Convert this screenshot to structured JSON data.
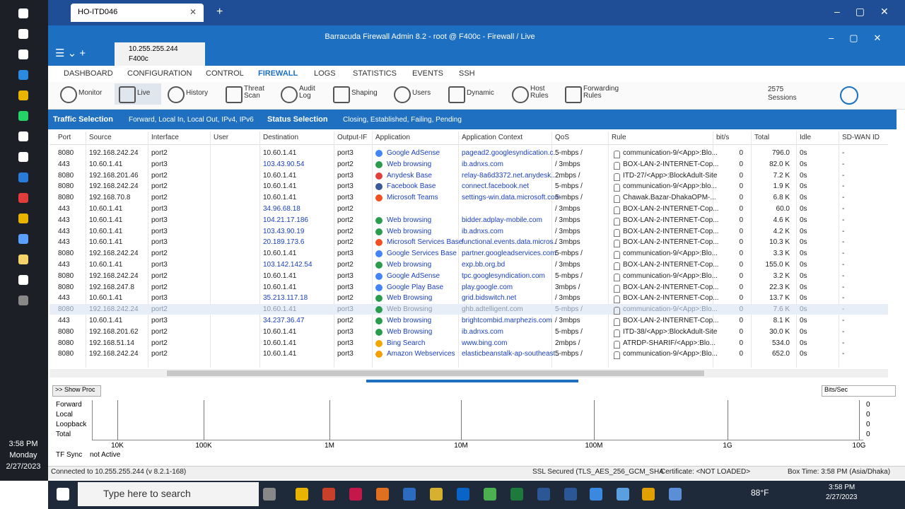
{
  "browser": {
    "tab": "HO-ITD046"
  },
  "window": {
    "title": "Barracuda Firewall Admin 8.2 - root @ F400c - Firewall / Live",
    "session_ip": "10.255.255.244",
    "session_box": "F400c"
  },
  "nav": [
    "DASHBOARD",
    "CONFIGURATION",
    "CONTROL",
    "FIREWALL",
    "LOGS",
    "STATISTICS",
    "EVENTS",
    "SSH"
  ],
  "toolbar": [
    "Monitor",
    "Live",
    "History",
    "Threat Scan",
    "Audit Log",
    "Shaping",
    "Users",
    "Dynamic",
    "Host Rules",
    "Forwarding Rules"
  ],
  "sessions": {
    "count": "2575",
    "label": "Sessions"
  },
  "filters": {
    "traffic_label": "Traffic Selection",
    "traffic_value": "Forward, Local In, Local Out, IPv4, IPv6",
    "status_label": "Status Selection",
    "status_value": "Closing, Established, Failing, Pending"
  },
  "table": {
    "columns": [
      "Port",
      "Source",
      "Interface",
      "User",
      "Destination",
      "Output-IF",
      "Application",
      "Application Context",
      "QoS",
      "Rule",
      "bit/s",
      "Total",
      "Idle",
      "SD-WAN ID"
    ],
    "rows": [
      {
        "port": "8080",
        "source": "192.168.242.24",
        "interface": "port2",
        "destination": "10.60.1.41",
        "output_if": "port3",
        "application": "Google AdSense",
        "context": "pagead2.googlesyndication.c..",
        "qos": "5-mbps /",
        "rule": "communication-9/<App>:Blo...",
        "bits": "0",
        "total": "796.0",
        "idle": "0s",
        "sdwan": "-"
      },
      {
        "port": "443",
        "source": "10.60.1.41",
        "interface": "port3",
        "destination": "103.43.90.54",
        "output_if": "port2",
        "application": "Web browsing",
        "context": "ib.adnxs.com",
        "qos": "/ 3mbps",
        "rule": "BOX-LAN-2-INTERNET-Cop...",
        "bits": "0",
        "total": "82.0 K",
        "idle": "0s",
        "sdwan": "-"
      },
      {
        "port": "8080",
        "source": "192.168.201.46",
        "interface": "port2",
        "destination": "10.60.1.41",
        "output_if": "port3",
        "application": "Anydesk Base",
        "context": "relay-8a6d3372.net.anydesk...",
        "qos": "2mbps /",
        "rule": "ITD-27/<App>:BlockAdult-Site",
        "bits": "0",
        "total": "7.2 K",
        "idle": "0s",
        "sdwan": "-"
      },
      {
        "port": "8080",
        "source": "192.168.242.24",
        "interface": "port2",
        "destination": "10.60.1.41",
        "output_if": "port3",
        "application": "Facebook Base",
        "context": "connect.facebook.net",
        "qos": "5-mbps /",
        "rule": "communication-9/<App>:blo...",
        "bits": "0",
        "total": "1.9 K",
        "idle": "0s",
        "sdwan": "-"
      },
      {
        "port": "8080",
        "source": "192.168.70.8",
        "interface": "port2",
        "destination": "10.60.1.41",
        "output_if": "port3",
        "application": "Microsoft Teams",
        "context": "settings-win.data.microsoft.com",
        "qos": "5-mbps /",
        "rule": "Chawak.Bazar-DhakaOPM-...",
        "bits": "0",
        "total": "6.8 K",
        "idle": "0s",
        "sdwan": "-"
      },
      {
        "port": "443",
        "source": "10.60.1.41",
        "interface": "port3",
        "destination": "34.96.68.18",
        "output_if": "port2",
        "qos": "/ 3mbps",
        "rule": "BOX-LAN-2-INTERNET-Cop...",
        "bits": "0",
        "total": "60.0",
        "idle": "0s",
        "sdwan": "-"
      },
      {
        "port": "443",
        "source": "10.60.1.41",
        "interface": "port3",
        "destination": "104.21.17.186",
        "output_if": "port2",
        "application": "Web browsing",
        "context": "bidder.adplay-mobile.com",
        "qos": "/ 3mbps",
        "rule": "BOX-LAN-2-INTERNET-Cop...",
        "bits": "0",
        "total": "4.6 K",
        "idle": "0s",
        "sdwan": "-"
      },
      {
        "port": "443",
        "source": "10.60.1.41",
        "interface": "port3",
        "destination": "103.43.90.19",
        "output_if": "port2",
        "application": "Web browsing",
        "context": "ib.adnxs.com",
        "qos": "/ 3mbps",
        "rule": "BOX-LAN-2-INTERNET-Cop...",
        "bits": "0",
        "total": "4.2 K",
        "idle": "0s",
        "sdwan": "-"
      },
      {
        "port": "443",
        "source": "10.60.1.41",
        "interface": "port3",
        "destination": "20.189.173.6",
        "output_if": "port2",
        "application": "Microsoft Services Base",
        "context": "functional.events.data.micros..",
        "qos": "/ 3mbps",
        "rule": "BOX-LAN-2-INTERNET-Cop...",
        "bits": "0",
        "total": "10.3 K",
        "idle": "0s",
        "sdwan": "-"
      },
      {
        "port": "8080",
        "source": "192.168.242.24",
        "interface": "port2",
        "destination": "10.60.1.41",
        "output_if": "port3",
        "application": "Google Services Base",
        "context": "partner.googleadservices.com",
        "qos": "5-mbps /",
        "rule": "communication-9/<App>:Blo...",
        "bits": "0",
        "total": "3.3 K",
        "idle": "0s",
        "sdwan": "-"
      },
      {
        "port": "443",
        "source": "10.60.1.41",
        "interface": "port3",
        "destination": "103.142.142.54",
        "output_if": "port2",
        "application": "Web browsing",
        "context": "exp.bb.org.bd",
        "qos": "/ 3mbps",
        "rule": "BOX-LAN-2-INTERNET-Cop...",
        "bits": "0",
        "total": "155.0 K",
        "idle": "0s",
        "sdwan": "-"
      },
      {
        "port": "8080",
        "source": "192.168.242.24",
        "interface": "port2",
        "destination": "10.60.1.41",
        "output_if": "port3",
        "application": "Google AdSense",
        "context": "tpc.googlesyndication.com",
        "qos": "5-mbps /",
        "rule": "communication-9/<App>:Blo...",
        "bits": "0",
        "total": "3.2 K",
        "idle": "0s",
        "sdwan": "-"
      },
      {
        "port": "8080",
        "source": "192.168.247.8",
        "interface": "port2",
        "destination": "10.60.1.41",
        "output_if": "port3",
        "application": "Google Play Base",
        "context": "play.google.com",
        "qos": "3mbps /",
        "rule": "BOX-LAN-2-INTERNET-Cop...",
        "bits": "0",
        "total": "22.3 K",
        "idle": "0s",
        "sdwan": "-"
      },
      {
        "port": "443",
        "source": "10.60.1.41",
        "interface": "port3",
        "destination": "35.213.117.18",
        "output_if": "port2",
        "application": "Web Browsing",
        "context": "grid.bidswitch.net",
        "qos": "/ 3mbps",
        "rule": "BOX-LAN-2-INTERNET-Cop...",
        "bits": "0",
        "total": "13.7 K",
        "idle": "0s",
        "sdwan": "-"
      },
      {
        "port": "8080",
        "source": "192.168.242.24",
        "interface": "port2",
        "destination": "10.60.1.41",
        "output_if": "port3",
        "application": "Web Browsing",
        "context": "ghb.adtelligent.com",
        "qos": "5-mbps /",
        "rule": "communication-9/<App>:Blo...",
        "bits": "0",
        "total": "7.6 K",
        "idle": "0s",
        "sdwan": "-"
      },
      {
        "port": "443",
        "source": "10.60.1.41",
        "interface": "port3",
        "destination": "34.237.36.47",
        "output_if": "port2",
        "application": "Web browsing",
        "context": "brightcombid.marphezis.com",
        "qos": "/ 3mbps",
        "rule": "BOX-LAN-2-INTERNET-Cop...",
        "bits": "0",
        "total": "8.1 K",
        "idle": "0s",
        "sdwan": "-"
      },
      {
        "port": "8080",
        "source": "192.168.201.62",
        "interface": "port2",
        "destination": "10.60.1.41",
        "output_if": "port3",
        "application": "Web Browsing",
        "context": "ib.adnxs.com",
        "qos": "5-mbps /",
        "rule": "ITD-38/<App>:BlockAdult-Site",
        "bits": "0",
        "total": "30.0 K",
        "idle": "0s",
        "sdwan": "-"
      },
      {
        "port": "8080",
        "source": "192.168.51.14",
        "interface": "port2",
        "destination": "10.60.1.41",
        "output_if": "port3",
        "application": "Bing Search",
        "context": "www.bing.com",
        "qos": "2mbps /",
        "rule": "ATRDP-SHARIF/<App>:Blo...",
        "bits": "0",
        "total": "534.0",
        "idle": "0s",
        "sdwan": "-"
      },
      {
        "port": "8080",
        "source": "192.168.242.24",
        "interface": "port2",
        "destination": "10.60.1.41",
        "output_if": "port3",
        "application": "Amazon Webservices",
        "context": "elasticbeanstalk-ap-southeast..",
        "qos": "5-mbps /",
        "rule": "communication-9/<App>:Blo...",
        "bits": "0",
        "total": "652.0",
        "idle": "0s",
        "sdwan": "-"
      }
    ]
  },
  "graph": {
    "show_proc": ">> Show Proc",
    "unit": "Bits/Sec",
    "labels": [
      "Forward",
      "Local",
      "Loopback",
      "Total"
    ],
    "values": [
      "0",
      "0",
      "0",
      "0"
    ],
    "axis": [
      "10K",
      "100K",
      "1M",
      "10M",
      "100M",
      "1G",
      "10G"
    ],
    "tf_sync": "TF Sync",
    "tf_status": "not Active"
  },
  "status": [
    "Connected to 10.255.255.244 (v 8.2.1-168)",
    "SSL Secured (TLS_AES_256_GCM_SHA",
    "Certificate: <NOT LOADED>",
    "Box Time: 3:58 PM (Asia/Dhaka)"
  ],
  "sidebar": {
    "time": "3:58 PM",
    "day": "Monday",
    "date": "2/27/2023"
  },
  "taskbar": {
    "search": "Type here to search",
    "weather": "88°F",
    "time": "3:58 PM",
    "date": "2/27/2023"
  }
}
